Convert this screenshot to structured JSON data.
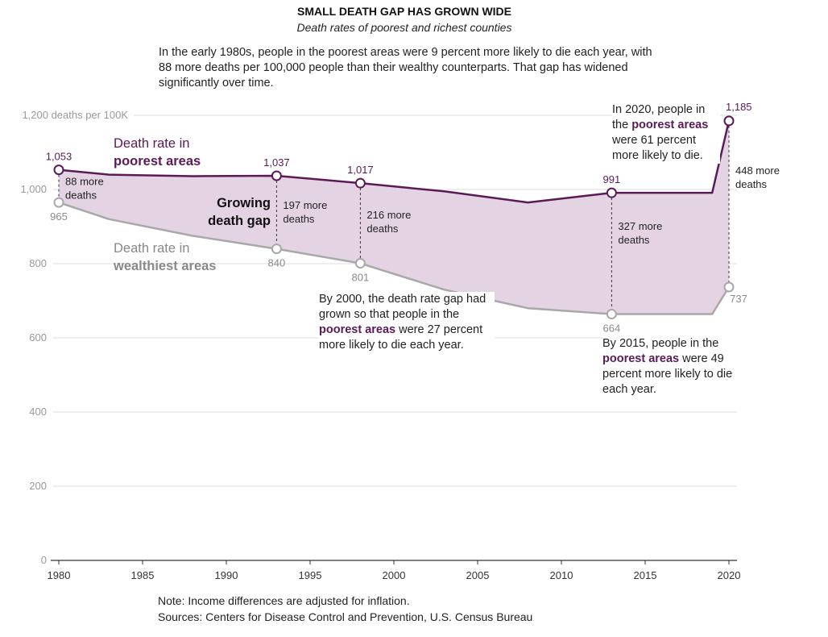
{
  "header": {
    "title": "SMALL DEATH GAP HAS GROWN WIDE",
    "subtitle": "Death rates of poorest and richest counties",
    "intro": "In the early 1980s, people in the poorest areas were 9 percent more likely to die each year, with 88 more deaths per 100,000 people than their wealthy counterparts. That gap has widened significantly over time."
  },
  "legend": {
    "poorest_line1": "Death rate in",
    "poorest_line2": "poorest areas",
    "wealthiest_line1": "Death rate in",
    "wealthiest_line2": "wealthiest areas",
    "gap_line1": "Growing",
    "gap_line2": "death gap"
  },
  "annotations": {
    "a2000_pre": "By 2000, the death rate gap had grown so that people in the ",
    "a2000_hl": "poorest areas",
    "a2000_post": " were 27 percent more likely to die each year.",
    "a2015_pre": "By 2015, people in the ",
    "a2015_hl": "poorest areas",
    "a2015_post": " were 49 percent more likely to die each year.",
    "a2020_pre": "In 2020, people in the ",
    "a2020_hl": "poorest areas",
    "a2020_post": " were 61 percent more likely to die."
  },
  "footer": {
    "note": "Note: Income differences are adjusted for inflation.",
    "sources": "Sources: Centers for Disease Control and Prevention, U.S. Census Bureau"
  },
  "colors": {
    "poorest": "#5b1a57",
    "wealthiest": "#a8a8a8",
    "gap_fill": "#e4d4e3",
    "grid": "#dddddd"
  },
  "chart_data": {
    "type": "area",
    "title": "SMALL DEATH GAP HAS GROWN WIDE",
    "subtitle": "Death rates of poorest and richest counties",
    "ylabel": "deaths per 100K",
    "xlim": [
      1980,
      2020
    ],
    "ylim": [
      0,
      1200
    ],
    "y_ticks": [
      0,
      200,
      400,
      600,
      800,
      1000,
      1200
    ],
    "y_tick_labels": [
      "0",
      "200",
      "400",
      "600",
      "800",
      "1,000",
      "1,200 deaths per 100K"
    ],
    "x_ticks": [
      1980,
      1985,
      1990,
      1995,
      2000,
      2005,
      2010,
      2015,
      2020
    ],
    "x_tick_labels": [
      "1980",
      "1985",
      "1990",
      "1995",
      "2000",
      "2005",
      "2010",
      "2015",
      "2020"
    ],
    "grid": true,
    "series": [
      {
        "name": "Death rate in poorest areas",
        "x": [
          1980,
          1983,
          1988,
          1993,
          1998,
          2003,
          2008,
          2013,
          2019,
          2020
        ],
        "y": [
          1053,
          1040,
          1036,
          1037,
          1017,
          995,
          965,
          991,
          991,
          1185
        ]
      },
      {
        "name": "Death rate in wealthiest areas",
        "x": [
          1980,
          1983,
          1988,
          1993,
          1998,
          2003,
          2008,
          2013,
          2019,
          2020
        ],
        "y": [
          965,
          920,
          875,
          840,
          801,
          730,
          680,
          664,
          664,
          737
        ]
      }
    ],
    "labeled_points": [
      {
        "series": 0,
        "x": 1980,
        "y": 1053,
        "label": "1,053"
      },
      {
        "series": 0,
        "x": 1993,
        "y": 1037,
        "label": "1,037"
      },
      {
        "series": 0,
        "x": 1998,
        "y": 1017,
        "label": "1,017"
      },
      {
        "series": 0,
        "x": 2013,
        "y": 991,
        "label": "991"
      },
      {
        "series": 0,
        "x": 2020,
        "y": 1185,
        "label": "1,185"
      },
      {
        "series": 1,
        "x": 1980,
        "y": 965,
        "label": "965"
      },
      {
        "series": 1,
        "x": 1993,
        "y": 840,
        "label": "840"
      },
      {
        "series": 1,
        "x": 1998,
        "y": 801,
        "label": "801"
      },
      {
        "series": 1,
        "x": 2013,
        "y": 664,
        "label": "664"
      },
      {
        "series": 1,
        "x": 2020,
        "y": 737,
        "label": "737"
      }
    ],
    "gaps": [
      {
        "x": 1980,
        "line1": "88 more",
        "line2": "deaths"
      },
      {
        "x": 1993,
        "line1": "197 more",
        "line2": "deaths"
      },
      {
        "x": 1998,
        "line1": "216 more",
        "line2": "deaths"
      },
      {
        "x": 2013,
        "line1": "327 more",
        "line2": "deaths"
      },
      {
        "x": 2020,
        "line1": "448 more",
        "line2": "deaths"
      }
    ]
  }
}
